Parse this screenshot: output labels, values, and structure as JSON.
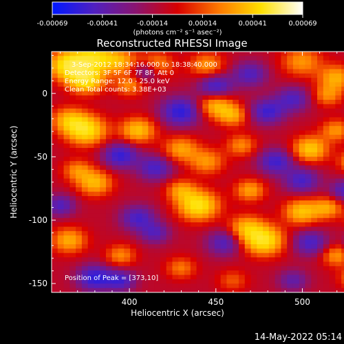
{
  "chart_data": {
    "type": "heatmap",
    "title": "Reconstructed RHESSI Image",
    "xlabel": "Heliocentric X (arcsec)",
    "ylabel": "Heliocentric Y (arcsec)",
    "xlim": [
      355,
      540
    ],
    "ylim": [
      -157,
      33
    ],
    "x_ticks": [
      400,
      450,
      500
    ],
    "y_ticks": [
      0,
      -50,
      -100,
      -150
    ],
    "colorbar": {
      "ticks": [
        "-0.00069",
        "-0.00041",
        "-0.00014",
        "0.00014",
        "0.00041",
        "0.00069"
      ],
      "unit_label": "(photons cm⁻² s⁻¹ asec⁻²)",
      "range": [
        -0.00069,
        0.00069
      ],
      "colors": [
        "#0018ff",
        "#5020c0",
        "#8a1470",
        "#d80000",
        "#ff7a00",
        "#ffe000",
        "#ffffff"
      ]
    },
    "annotations": [
      "3-Sep-2012 18:34:16.000 to 18:38:40.000",
      "Detectors: 3F 5F 6F 7F 8F, Att 0",
      "Energy Range: 12.0 - 25.0 keV",
      "Clean   Total counts: 3.38E+03"
    ],
    "peak_label": "Position of Peak = [373,10]",
    "blobs": [
      {
        "x": 365,
        "y": 22,
        "v": 1.0,
        "s": 8
      },
      {
        "x": 380,
        "y": 28,
        "v": 0.8,
        "s": 8
      },
      {
        "x": 375,
        "y": 10,
        "v": 0.9,
        "s": 7
      },
      {
        "x": 395,
        "y": 25,
        "v": 0.55,
        "s": 7
      },
      {
        "x": 415,
        "y": 22,
        "v": 0.6,
        "s": 7
      },
      {
        "x": 445,
        "y": 22,
        "v": 0.5,
        "s": 7
      },
      {
        "x": 500,
        "y": 25,
        "v": 0.5,
        "s": 8
      },
      {
        "x": 520,
        "y": 12,
        "v": 0.6,
        "s": 7
      },
      {
        "x": 515,
        "y": -2,
        "v": 0.45,
        "s": 6
      },
      {
        "x": 400,
        "y": 6,
        "v": 0.45,
        "s": 6
      },
      {
        "x": 450,
        "y": -10,
        "v": 0.65,
        "s": 7
      },
      {
        "x": 460,
        "y": -18,
        "v": 0.55,
        "s": 6
      },
      {
        "x": 375,
        "y": -30,
        "v": 0.9,
        "s": 8
      },
      {
        "x": 365,
        "y": -22,
        "v": 0.6,
        "s": 7
      },
      {
        "x": 405,
        "y": -30,
        "v": 0.7,
        "s": 7
      },
      {
        "x": 430,
        "y": -45,
        "v": 0.55,
        "s": 7
      },
      {
        "x": 445,
        "y": -55,
        "v": 0.5,
        "s": 7
      },
      {
        "x": 465,
        "y": -42,
        "v": 0.45,
        "s": 6
      },
      {
        "x": 505,
        "y": -45,
        "v": 0.75,
        "s": 7
      },
      {
        "x": 520,
        "y": -30,
        "v": 0.5,
        "s": 6
      },
      {
        "x": 530,
        "y": -55,
        "v": 0.5,
        "s": 6
      },
      {
        "x": 380,
        "y": -72,
        "v": 0.65,
        "s": 7
      },
      {
        "x": 370,
        "y": -62,
        "v": 0.45,
        "s": 6
      },
      {
        "x": 440,
        "y": -90,
        "v": 0.95,
        "s": 8
      },
      {
        "x": 430,
        "y": -78,
        "v": 0.5,
        "s": 6
      },
      {
        "x": 470,
        "y": -78,
        "v": 0.55,
        "s": 6
      },
      {
        "x": 478,
        "y": -118,
        "v": 0.95,
        "s": 8
      },
      {
        "x": 468,
        "y": -108,
        "v": 0.6,
        "s": 7
      },
      {
        "x": 500,
        "y": -95,
        "v": 0.7,
        "s": 7
      },
      {
        "x": 515,
        "y": -92,
        "v": 0.55,
        "s": 6
      },
      {
        "x": 535,
        "y": -100,
        "v": 0.45,
        "s": 6
      },
      {
        "x": 520,
        "y": -130,
        "v": 0.5,
        "s": 6
      },
      {
        "x": 365,
        "y": -118,
        "v": 0.6,
        "s": 7
      },
      {
        "x": 395,
        "y": -130,
        "v": 0.45,
        "s": 6
      },
      {
        "x": 430,
        "y": -140,
        "v": 0.4,
        "s": 6
      },
      {
        "x": 530,
        "y": -148,
        "v": 0.4,
        "s": 6
      },
      {
        "x": 460,
        "y": -150,
        "v": 0.3,
        "s": 6
      },
      {
        "x": 410,
        "y": 18,
        "v": -0.6,
        "s": 6
      },
      {
        "x": 430,
        "y": -15,
        "v": -0.7,
        "s": 8
      },
      {
        "x": 450,
        "y": 5,
        "v": -0.6,
        "s": 7
      },
      {
        "x": 480,
        "y": -15,
        "v": -0.6,
        "s": 7
      },
      {
        "x": 495,
        "y": -5,
        "v": -0.5,
        "s": 7
      },
      {
        "x": 470,
        "y": 15,
        "v": -0.5,
        "s": 7
      },
      {
        "x": 395,
        "y": -50,
        "v": -0.65,
        "s": 7
      },
      {
        "x": 415,
        "y": -60,
        "v": -0.55,
        "s": 7
      },
      {
        "x": 485,
        "y": -55,
        "v": -0.6,
        "s": 7
      },
      {
        "x": 500,
        "y": -70,
        "v": -0.55,
        "s": 7
      },
      {
        "x": 525,
        "y": -78,
        "v": -0.5,
        "s": 6
      },
      {
        "x": 360,
        "y": -90,
        "v": -0.5,
        "s": 6
      },
      {
        "x": 405,
        "y": -100,
        "v": -0.55,
        "s": 7
      },
      {
        "x": 415,
        "y": -112,
        "v": -0.45,
        "s": 6
      },
      {
        "x": 455,
        "y": -120,
        "v": -0.5,
        "s": 7
      },
      {
        "x": 505,
        "y": -120,
        "v": -0.55,
        "s": 7
      },
      {
        "x": 535,
        "y": -120,
        "v": -0.55,
        "s": 6
      },
      {
        "x": 380,
        "y": -148,
        "v": -0.7,
        "s": 7
      },
      {
        "x": 395,
        "y": -150,
        "v": -0.55,
        "s": 6
      },
      {
        "x": 495,
        "y": -150,
        "v": -0.4,
        "s": 6
      }
    ]
  },
  "footer": {
    "timestamp": "14-May-2022 05:14"
  }
}
